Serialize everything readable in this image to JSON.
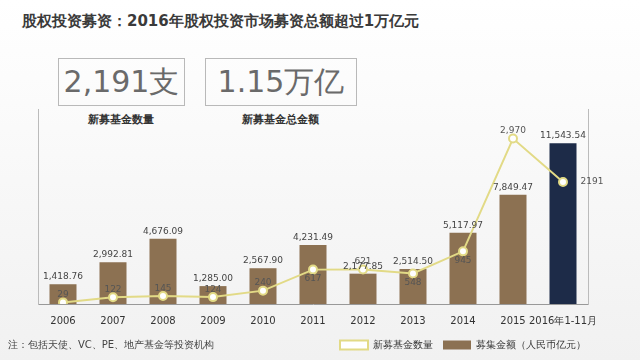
{
  "chart_data": {
    "type": "bar",
    "title": "股权投资募资：2016年股权投资市场募资总额超过1万亿元",
    "annotations": [
      {
        "text": "2,191支",
        "caption": "新募基金数量"
      },
      {
        "text": "1.15万亿",
        "caption": "新募基金总金额"
      }
    ],
    "footnote": "注：包括天使、VC、PE、地产基金等投资机构",
    "categories": [
      "2006",
      "2007",
      "2008",
      "2009",
      "2010",
      "2011",
      "2012",
      "2013",
      "2014",
      "2015",
      "2016年1-11月"
    ],
    "series": [
      {
        "name": "募集金额（人民币亿元）",
        "type": "bar",
        "color": "#8c7152",
        "colors": [
          "#8c7152",
          "#8c7152",
          "#8c7152",
          "#8c7152",
          "#8c7152",
          "#8c7152",
          "#8c7152",
          "#8c7152",
          "#8c7152",
          "#8c7152",
          "#1d2b48"
        ],
        "values": [
          1418.76,
          2992.81,
          4676.09,
          1285.0,
          2567.9,
          4231.49,
          2177.85,
          2514.5,
          5117.97,
          7849.47,
          11543.54
        ],
        "value_labels": [
          "1,418.76",
          "2,992.81",
          "4,676.09",
          "1,285.00",
          "2,567.90",
          "4,231.49",
          "2,177.85",
          "2,514.50",
          "5,117.97",
          "7,849.47",
          "11,543.54"
        ]
      },
      {
        "name": "新募基金数量",
        "type": "line",
        "color": "#e2da86",
        "axis": "y2",
        "marker": "circle",
        "line_style": "solid",
        "values": [
          29,
          122,
          145,
          124,
          240,
          617,
          621,
          548,
          945,
          2970,
          2191
        ],
        "value_labels": [
          "29",
          "122",
          "145",
          "124",
          "240",
          "617",
          "621",
          "548",
          "945",
          "2,970",
          "2191"
        ]
      }
    ],
    "ylim": [
      0,
      14000
    ],
    "y2lim": [
      0,
      3500
    ],
    "grid": false,
    "legend": "bottom-right",
    "data_labels": true,
    "tick_labels": "x"
  }
}
